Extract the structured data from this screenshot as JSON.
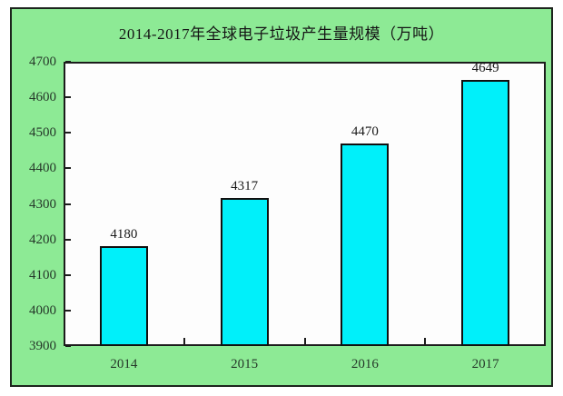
{
  "title": "2014-2017年全球电子垃圾产生量规模（万吨）",
  "colors": {
    "panel_background": "#8dea95",
    "panel_border": "#1d241d",
    "plot_background": "#fdfdfd",
    "plot_border": "#1c1c1c",
    "bar_fill": "#00f0fa",
    "bar_border": "#101010",
    "title_text": "#151515",
    "axis_text": "#26392a",
    "value_label_text": "#191919"
  },
  "chart_data": {
    "type": "bar",
    "title": "2014-2017年全球电子垃圾产生量规模（万吨）",
    "categories": [
      "2014",
      "2015",
      "2016",
      "2017"
    ],
    "values": [
      4180,
      4317,
      4470,
      4649
    ],
    "data_labels": [
      "4180",
      "4317",
      "4470",
      "4649"
    ],
    "xlabel": "",
    "ylabel": "",
    "ylim": [
      3900,
      4700
    ],
    "ytick_step": 100,
    "yticks": [
      3900,
      4000,
      4100,
      4200,
      4300,
      4400,
      4500,
      4600,
      4700
    ],
    "grid": false,
    "legend_position": "none",
    "tick_style": "inside"
  }
}
